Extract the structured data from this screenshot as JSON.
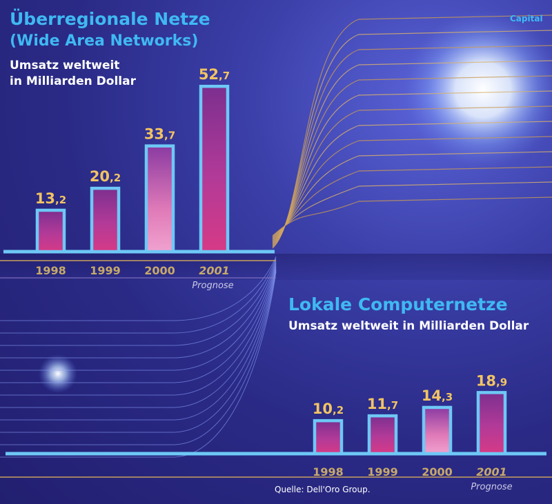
{
  "brand": "Capital",
  "source": "Quelle: Dell'Oro Group.",
  "colors": {
    "title": "#3fb9f2",
    "subtitle": "#ffffff",
    "value_label": "#f2c463",
    "year_label": "#c7a96a",
    "bar_outline": "#6ec8f5",
    "bar_fill_top": "#7c2f8f",
    "bar_fill_bottom": "#c4308c",
    "prognose": "#c9c9e6"
  },
  "chart_data": [
    {
      "type": "bar",
      "title": "Überregionale Netze",
      "title_line2": "(Wide Area Networks)",
      "subtitle": "Umsatz weltweit",
      "subtitle_line2": "in Milliarden Dollar",
      "categories": [
        "1998",
        "1999",
        "2000",
        "2001"
      ],
      "values": [
        13.2,
        20.2,
        33.7,
        52.7
      ],
      "value_labels": [
        [
          "13",
          ",2"
        ],
        [
          "20",
          ",2"
        ],
        [
          "33",
          ",7"
        ],
        [
          "52",
          ",7"
        ]
      ],
      "forecast_category": "2001",
      "forecast_note": "Prognose",
      "xlabel": "",
      "ylabel": ""
    },
    {
      "type": "bar",
      "title": "Lokale Computernetze",
      "subtitle": "Umsatz weltweit in Milliarden Dollar",
      "categories": [
        "1998",
        "1999",
        "2000",
        "2001"
      ],
      "values": [
        10.2,
        11.7,
        14.3,
        18.9
      ],
      "value_labels": [
        [
          "10",
          ",2"
        ],
        [
          "11",
          ",7"
        ],
        [
          "14",
          ",3"
        ],
        [
          "18",
          ",9"
        ]
      ],
      "forecast_category": "2001",
      "forecast_note": "Prognose",
      "xlabel": "",
      "ylabel": ""
    }
  ]
}
